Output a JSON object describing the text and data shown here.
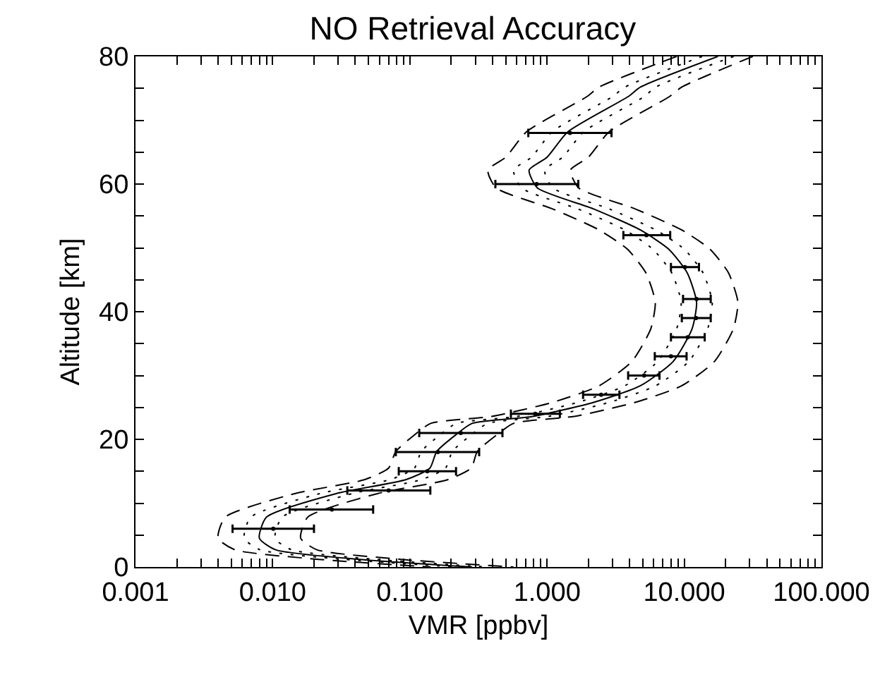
{
  "chart_data": {
    "type": "line",
    "title": "NO Retrieval Accuracy",
    "xlabel": "VMR [ppbv]",
    "ylabel": "Altitude [km]",
    "log": "x",
    "grid": false,
    "xlim": [
      0.001,
      100
    ],
    "xticks": [
      {
        "value": 0.001,
        "label": "0.001"
      },
      {
        "value": 0.002,
        "label": null
      },
      {
        "value": 0.003,
        "label": null
      },
      {
        "value": 0.004,
        "label": null
      },
      {
        "value": 0.005,
        "label": null
      },
      {
        "value": 0.006,
        "label": null
      },
      {
        "value": 0.007,
        "label": null
      },
      {
        "value": 0.008,
        "label": null
      },
      {
        "value": 0.009,
        "label": null
      },
      {
        "value": 0.01,
        "label": "0.010"
      },
      {
        "value": 0.02,
        "label": null
      },
      {
        "value": 0.03,
        "label": null
      },
      {
        "value": 0.04,
        "label": null
      },
      {
        "value": 0.05,
        "label": null
      },
      {
        "value": 0.06,
        "label": null
      },
      {
        "value": 0.07,
        "label": null
      },
      {
        "value": 0.08,
        "label": null
      },
      {
        "value": 0.09,
        "label": null
      },
      {
        "value": 0.1,
        "label": "0.100"
      },
      {
        "value": 0.2,
        "label": null
      },
      {
        "value": 0.3,
        "label": null
      },
      {
        "value": 0.4,
        "label": null
      },
      {
        "value": 0.5,
        "label": null
      },
      {
        "value": 0.6,
        "label": null
      },
      {
        "value": 0.7,
        "label": null
      },
      {
        "value": 0.8,
        "label": null
      },
      {
        "value": 0.9,
        "label": null
      },
      {
        "value": 1,
        "label": "1.000"
      },
      {
        "value": 2,
        "label": null
      },
      {
        "value": 3,
        "label": null
      },
      {
        "value": 4,
        "label": null
      },
      {
        "value": 5,
        "label": null
      },
      {
        "value": 6,
        "label": null
      },
      {
        "value": 7,
        "label": null
      },
      {
        "value": 8,
        "label": null
      },
      {
        "value": 9,
        "label": null
      },
      {
        "value": 10,
        "label": "10.000"
      },
      {
        "value": 20,
        "label": null
      },
      {
        "value": 30,
        "label": null
      },
      {
        "value": 40,
        "label": null
      },
      {
        "value": 50,
        "label": null
      },
      {
        "value": 60,
        "label": null
      },
      {
        "value": 70,
        "label": null
      },
      {
        "value": 80,
        "label": null
      },
      {
        "value": 90,
        "label": null
      },
      {
        "value": 100,
        "label": "100.000"
      }
    ],
    "ylim": [
      0,
      80
    ],
    "yticks": [
      0,
      {
        "value": 5,
        "label": null
      },
      {
        "value": 10,
        "label": null
      },
      {
        "value": 15,
        "label": null
      },
      20,
      {
        "value": 25,
        "label": null
      },
      {
        "value": 30,
        "label": null
      },
      {
        "value": 35,
        "label": null
      },
      40,
      {
        "value": 45,
        "label": null
      },
      {
        "value": 50,
        "label": null
      },
      {
        "value": 55,
        "label": null
      },
      60,
      {
        "value": 65,
        "label": null
      },
      {
        "value": 70,
        "label": null
      },
      {
        "value": 75,
        "label": null
      },
      80
    ],
    "series": [
      {
        "color": "#000000",
        "line_style": "solid",
        "x": [
          17.6,
          4.8,
          3.9,
          1.42,
          1.0,
          0.74,
          0.85,
          2.19,
          4.8,
          7.7,
          10.5,
          12.3,
          11.4,
          8.3,
          4.8,
          2.19,
          0.79,
          0.284,
          0.216,
          0.157,
          0.14,
          0.094,
          0.029,
          0.009,
          0.008,
          0.0105,
          0.043,
          0.284
        ],
        "values": [
          80,
          75.2,
          73.7,
          68.2,
          64.2,
          62.2,
          59.4,
          56.1,
          52.8,
          49.8,
          46.1,
          41.5,
          37.3,
          32.2,
          28.4,
          25.8,
          23.6,
          22.5,
          20.7,
          18.1,
          15.5,
          13.7,
          11.5,
          7.8,
          4.5,
          2.7,
          1.2,
          0
        ]
      },
      {
        "color": "#000000",
        "line_style": "dotted",
        "x": [
          13.5,
          3.7,
          3.0,
          1.09,
          0.77,
          0.57,
          0.65,
          1.68,
          3.7,
          5.9,
          8.1,
          9.5,
          8.8,
          6.4,
          3.7,
          1.68,
          0.61,
          0.218,
          0.166,
          0.121,
          0.108,
          0.072,
          0.022,
          0.0069,
          0.0062,
          0.0081,
          0.033,
          0.218
        ],
        "values": [
          80,
          75.2,
          73.7,
          68.2,
          64.2,
          62.2,
          59.4,
          56.1,
          52.8,
          49.8,
          46.1,
          41.5,
          37.3,
          32.2,
          28.4,
          25.8,
          23.6,
          22.5,
          20.7,
          18.1,
          15.5,
          13.7,
          11.5,
          7.8,
          4.5,
          2.7,
          1.2,
          0
        ]
      },
      {
        "color": "#000000",
        "line_style": "dotted",
        "x": [
          22.9,
          6.2,
          5.1,
          1.85,
          1.3,
          0.96,
          1.1,
          2.85,
          6.2,
          10.0,
          13.7,
          16.0,
          14.8,
          10.8,
          6.2,
          2.85,
          1.03,
          0.37,
          0.28,
          0.204,
          0.182,
          0.122,
          0.038,
          0.0117,
          0.0104,
          0.0137,
          0.056,
          0.37
        ],
        "values": [
          80,
          75.2,
          73.7,
          68.2,
          64.2,
          62.2,
          59.4,
          56.1,
          52.8,
          49.8,
          46.1,
          41.5,
          37.3,
          32.2,
          28.4,
          25.8,
          23.6,
          22.5,
          20.7,
          18.1,
          15.5,
          13.7,
          11.5,
          7.8,
          4.5,
          2.7,
          1.2,
          0
        ]
      },
      {
        "color": "#000000",
        "line_style": "dashed",
        "x": [
          8.8,
          2.4,
          1.95,
          0.71,
          0.5,
          0.37,
          0.425,
          1.1,
          2.4,
          3.85,
          5.25,
          6.15,
          5.7,
          4.15,
          2.4,
          1.1,
          0.395,
          0.142,
          0.108,
          0.079,
          0.07,
          0.047,
          0.0145,
          0.0045,
          0.004,
          0.0053,
          0.0215,
          0.142
        ],
        "values": [
          80,
          75.2,
          73.7,
          68.2,
          64.2,
          62.2,
          59.4,
          56.1,
          52.8,
          49.8,
          46.1,
          41.5,
          37.3,
          32.2,
          28.4,
          25.8,
          23.6,
          22.5,
          20.7,
          18.1,
          15.5,
          13.7,
          11.5,
          7.8,
          4.5,
          2.7,
          1.2,
          0
        ]
      },
      {
        "color": "#000000",
        "line_style": "dashed",
        "x": [
          31.6,
          9.6,
          7.8,
          2.84,
          2.0,
          1.48,
          1.7,
          4.4,
          9.6,
          15.4,
          21,
          24.6,
          22.8,
          16.6,
          9.6,
          4.4,
          1.58,
          0.57,
          0.43,
          0.31,
          0.28,
          0.19,
          0.058,
          0.018,
          0.016,
          0.021,
          0.086,
          0.57
        ],
        "values": [
          80,
          75.2,
          73.7,
          68.2,
          64.2,
          62.2,
          59.4,
          56.1,
          52.8,
          49.8,
          46.1,
          41.5,
          37.3,
          32.2,
          28.4,
          25.8,
          23.6,
          22.5,
          20.7,
          18.1,
          15.5,
          13.7,
          11.5,
          7.8,
          4.5,
          2.7,
          1.2,
          0
        ]
      },
      {
        "type": "scatter",
        "color": "#000000",
        "marker": "circle",
        "x": [
          1.47,
          0.84,
          5.3,
          10.1,
          12.3,
          12.2,
          10.6,
          8.0,
          5.1,
          2.48,
          0.82,
          0.235,
          0.16,
          0.134,
          0.07,
          0.027,
          0.0101
        ],
        "values": [
          68,
          60,
          52,
          47,
          42,
          39,
          36,
          33,
          30,
          27,
          24,
          21,
          18,
          15,
          12,
          9,
          6
        ],
        "xerrors": [
          [
            0.73,
            2.95
          ],
          [
            0.42,
            1.69
          ],
          [
            3.6,
            7.9
          ],
          [
            8.0,
            12.8
          ],
          [
            9.8,
            15.6
          ],
          [
            9.6,
            15.6
          ],
          [
            8.0,
            14.1
          ],
          [
            6.1,
            10.4
          ],
          [
            3.9,
            6.6
          ],
          [
            1.83,
            3.37
          ],
          [
            0.545,
            1.24
          ],
          [
            0.117,
            0.473
          ],
          [
            0.079,
            0.32
          ],
          [
            0.083,
            0.217
          ],
          [
            0.035,
            0.141
          ],
          [
            0.0133,
            0.054
          ],
          [
            0.0051,
            0.02
          ]
        ]
      }
    ]
  }
}
